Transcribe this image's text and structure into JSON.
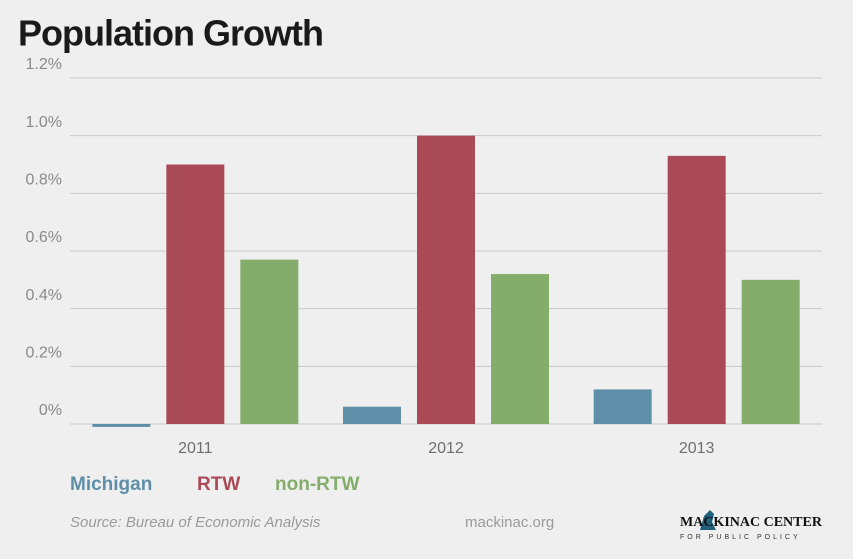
{
  "chart_data": {
    "type": "bar",
    "title": "Population Growth",
    "categories": [
      "2011",
      "2012",
      "2013"
    ],
    "series": [
      {
        "name": "Michigan",
        "color": "#5f8fa8",
        "values": [
          -0.01,
          0.06,
          0.12
        ]
      },
      {
        "name": "RTW",
        "color": "#ab4a57",
        "values": [
          0.9,
          1.0,
          0.93
        ]
      },
      {
        "name": "non-RTW",
        "color": "#84ad6b",
        "values": [
          0.57,
          0.52,
          0.5
        ]
      }
    ],
    "ylim": [
      0,
      1.2
    ],
    "yticks": [
      {
        "value": 0,
        "label": "0%"
      },
      {
        "value": 0.2,
        "label": "0.2%"
      },
      {
        "value": 0.4,
        "label": "0.4%"
      },
      {
        "value": 0.6,
        "label": "0.6%"
      },
      {
        "value": 0.8,
        "label": "0.8%"
      },
      {
        "value": 1.0,
        "label": "1.0%"
      },
      {
        "value": 1.2,
        "label": "1.2%"
      }
    ],
    "grid": true,
    "legend": "bottom"
  },
  "footer": {
    "source": "Source: Bureau of Economic Analysis",
    "site": "mackinac.org",
    "logo": "MACKINAC CENTER",
    "logo_sub": "FOR PUBLIC POLICY"
  }
}
